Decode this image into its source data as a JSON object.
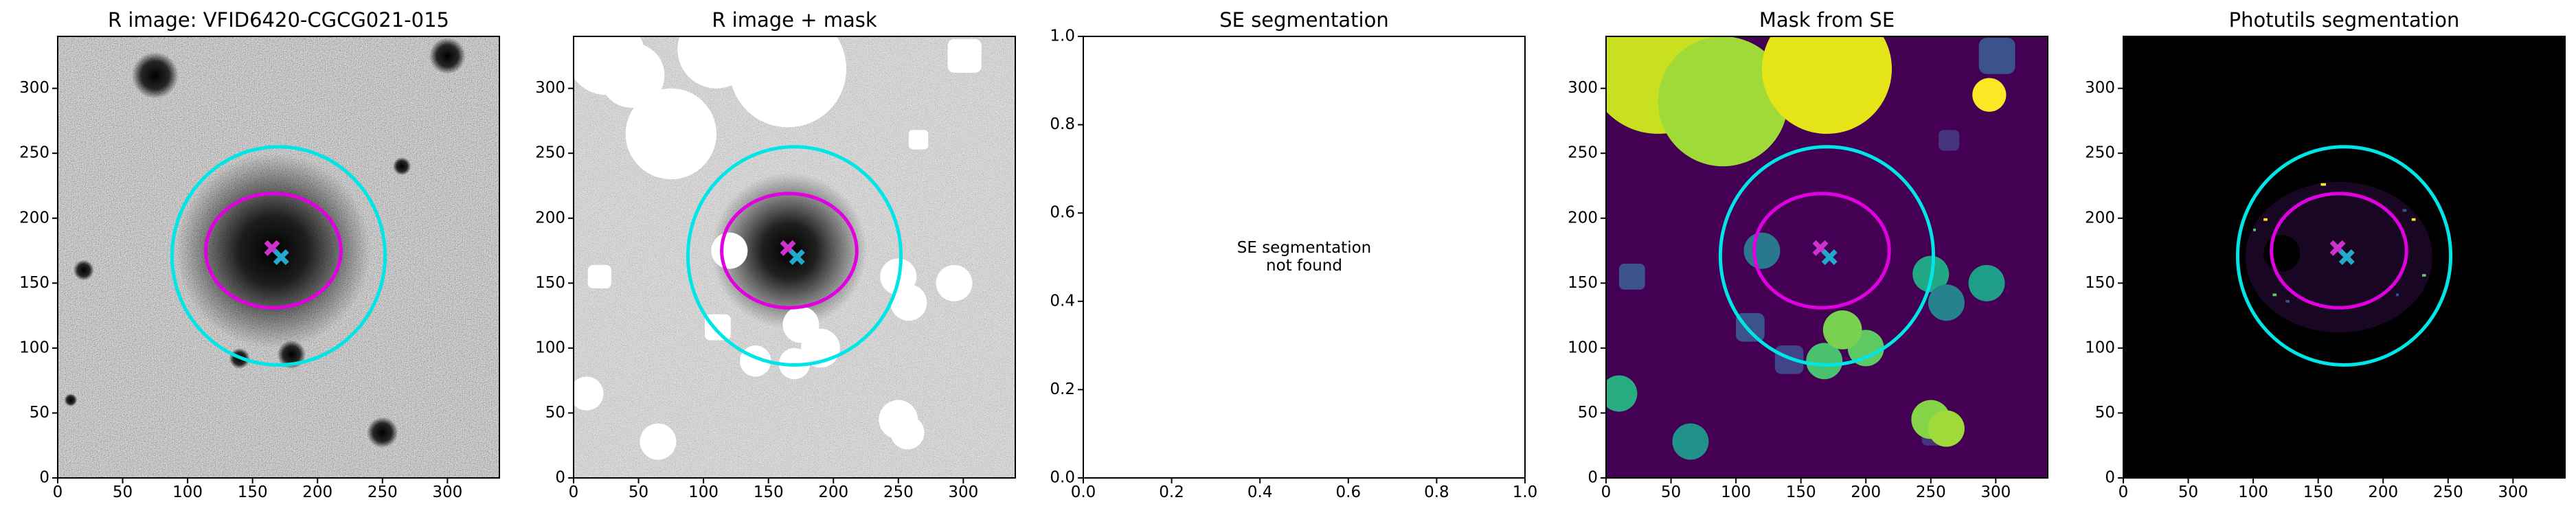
{
  "chart_data": [
    {
      "type": "image",
      "title": "R image: VFID6420-CGCG021-015",
      "xlim": [
        0,
        340
      ],
      "ylim": [
        0,
        340
      ],
      "xticks": [
        0,
        50,
        100,
        150,
        200,
        250,
        300
      ],
      "yticks": [
        0,
        50,
        100,
        150,
        200,
        250,
        300
      ],
      "ellipses": [
        {
          "color": "#00e5e5",
          "cx": 170,
          "cy": 171,
          "rx": 82,
          "ry": 84
        },
        {
          "color": "#e000e0",
          "cx": 166,
          "cy": 175,
          "rx": 52,
          "ry": 44
        }
      ],
      "markers": [
        {
          "color": "#cc33cc",
          "x": 165,
          "y": 177
        },
        {
          "color": "#22aacc",
          "x": 172,
          "y": 170
        }
      ]
    },
    {
      "type": "image",
      "title": "R image + mask",
      "xlim": [
        0,
        340
      ],
      "ylim": [
        0,
        340
      ],
      "xticks": [
        0,
        50,
        100,
        150,
        200,
        250,
        300
      ],
      "yticks": [
        0,
        50,
        100,
        150,
        200,
        250,
        300
      ],
      "ellipses": [
        {
          "color": "#00e5e5",
          "cx": 170,
          "cy": 171,
          "rx": 82,
          "ry": 84
        },
        {
          "color": "#e000e0",
          "cx": 166,
          "cy": 175,
          "rx": 52,
          "ry": 44
        }
      ],
      "markers": [
        {
          "color": "#cc33cc",
          "x": 165,
          "y": 177
        },
        {
          "color": "#22aacc",
          "x": 172,
          "y": 170
        }
      ]
    },
    {
      "type": "empty",
      "title": "SE segmentation",
      "xlim": [
        0,
        1
      ],
      "ylim": [
        0,
        1
      ],
      "xticks": [
        {
          "value": 0,
          "label": "0.0"
        },
        {
          "value": 0.2,
          "label": "0.2"
        },
        {
          "value": 0.4,
          "label": "0.4"
        },
        {
          "value": 0.6,
          "label": "0.6"
        },
        {
          "value": 0.8,
          "label": "0.8"
        },
        {
          "value": 1,
          "label": "1.0"
        }
      ],
      "yticks": [
        {
          "value": 0,
          "label": "0.0"
        },
        {
          "value": 0.2,
          "label": "0.2"
        },
        {
          "value": 0.4,
          "label": "0.4"
        },
        {
          "value": 0.6,
          "label": "0.6"
        },
        {
          "value": 0.8,
          "label": "0.8"
        },
        {
          "value": 1,
          "label": "1.0"
        }
      ],
      "annotation": [
        "SE segmentation",
        "not found"
      ]
    },
    {
      "type": "image",
      "title": "Mask from SE",
      "xlim": [
        0,
        340
      ],
      "ylim": [
        0,
        340
      ],
      "xticks": [
        0,
        50,
        100,
        150,
        200,
        250,
        300
      ],
      "yticks": [
        0,
        50,
        100,
        150,
        200,
        250,
        300
      ],
      "ellipses": [
        {
          "color": "#00e5e5",
          "cx": 170,
          "cy": 171,
          "rx": 82,
          "ry": 84
        },
        {
          "color": "#e000e0",
          "cx": 166,
          "cy": 175,
          "rx": 52,
          "ry": 44
        }
      ],
      "markers": [
        {
          "color": "#cc33cc",
          "x": 165,
          "y": 177
        },
        {
          "color": "#22aacc",
          "x": 172,
          "y": 170
        }
      ]
    },
    {
      "type": "image",
      "title": "Photutils segmentation",
      "xlim": [
        0,
        340
      ],
      "ylim": [
        0,
        340
      ],
      "xticks": [
        0,
        50,
        100,
        150,
        200,
        250,
        300
      ],
      "yticks": [
        0,
        50,
        100,
        150,
        200,
        250,
        300
      ],
      "ellipses": [
        {
          "color": "#00e5e5",
          "cx": 170,
          "cy": 171,
          "rx": 82,
          "ry": 84
        },
        {
          "color": "#e000e0",
          "cx": 166,
          "cy": 175,
          "rx": 52,
          "ry": 44
        }
      ],
      "markers": [
        {
          "color": "#cc33cc",
          "x": 165,
          "y": 177
        },
        {
          "color": "#22aacc",
          "x": 172,
          "y": 170
        }
      ]
    }
  ]
}
